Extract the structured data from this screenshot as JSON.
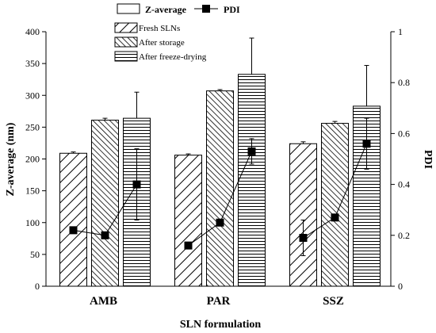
{
  "chart_data": {
    "type": "bar",
    "categories": [
      "AMB",
      "PAR",
      "SSZ"
    ],
    "xlabel": "SLN formulation",
    "ylabel": "Z-average (nm)",
    "ylabel_right": "PDI",
    "ylim": [
      0,
      400
    ],
    "ylim_right": [
      0,
      1
    ],
    "yticks": [
      "0",
      "50",
      "100",
      "150",
      "200",
      "250",
      "300",
      "350",
      "400"
    ],
    "yticks_right": [
      "0",
      "0.2",
      "0.4",
      "0.6",
      "0.8",
      "1"
    ],
    "legend_top": [
      {
        "label": "Z-average",
        "symbol": "open-box"
      },
      {
        "label": "PDI",
        "symbol": "filled-square"
      }
    ],
    "series": [
      {
        "name": "Fresh SLNs",
        "pattern": "diagonal",
        "values": [
          209,
          206,
          224
        ],
        "errors": [
          2,
          2,
          3
        ]
      },
      {
        "name": "After storage",
        "pattern": "diagonal-dense",
        "values": [
          261,
          307,
          256
        ],
        "errors": [
          3,
          2,
          3
        ]
      },
      {
        "name": "After freeze-drying",
        "pattern": "horizontal",
        "values": [
          264,
          333,
          283
        ],
        "errors": [
          41,
          57,
          64
        ]
      }
    ],
    "pdi_series": {
      "name": "PDI",
      "values": [
        [
          0.22,
          0.2,
          0.4
        ],
        [
          0.16,
          0.25,
          0.53
        ],
        [
          0.19,
          0.27,
          0.56
        ]
      ],
      "errors": [
        [
          0.0,
          0.0,
          0.14
        ],
        [
          0.0,
          0.0,
          0.05
        ],
        [
          0.07,
          0.0,
          0.1
        ]
      ]
    }
  }
}
